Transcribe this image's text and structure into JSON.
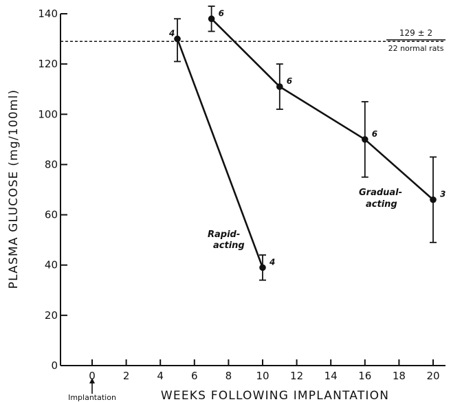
{
  "chart_data": {
    "type": "line",
    "title": "",
    "xlabel": "WEEKS FOLLOWING IMPLANTATION",
    "ylabel": "PLASMA GLUCOSE  (mg/100ml)",
    "xlim": [
      -3,
      21
    ],
    "ylim": [
      0,
      140
    ],
    "x_ticks": [
      0,
      2,
      4,
      6,
      8,
      10,
      12,
      14,
      16,
      18,
      20
    ],
    "y_ticks": [
      0,
      20,
      40,
      60,
      80,
      100,
      120,
      140
    ],
    "grid": false,
    "reference_line": {
      "y": 129,
      "label_top": "129 ± 2",
      "label_bottom": "22 normal rats"
    },
    "implantation_marker": {
      "x": 0,
      "label": "Implantation"
    },
    "series": [
      {
        "label": "Rapid-acting",
        "label_lines": [
          "Rapid-",
          "acting"
        ],
        "points": [
          {
            "x": 5,
            "y": 130,
            "err_low": 121,
            "err_high": 138,
            "n": "4"
          },
          {
            "x": 10,
            "y": 39,
            "err_low": 34,
            "err_high": 44,
            "n": "4"
          }
        ]
      },
      {
        "label": "Gradual-acting",
        "label_lines": [
          "Gradual-",
          "acting"
        ],
        "points": [
          {
            "x": 7,
            "y": 138,
            "err_low": 133,
            "err_high": 143,
            "n": "6"
          },
          {
            "x": 11,
            "y": 111,
            "err_low": 102,
            "err_high": 120,
            "n": "6"
          },
          {
            "x": 16,
            "y": 90,
            "err_low": 75,
            "err_high": 105,
            "n": "6"
          },
          {
            "x": 20,
            "y": 66,
            "err_low": 49,
            "err_high": 83,
            "n": "3"
          }
        ]
      }
    ]
  }
}
